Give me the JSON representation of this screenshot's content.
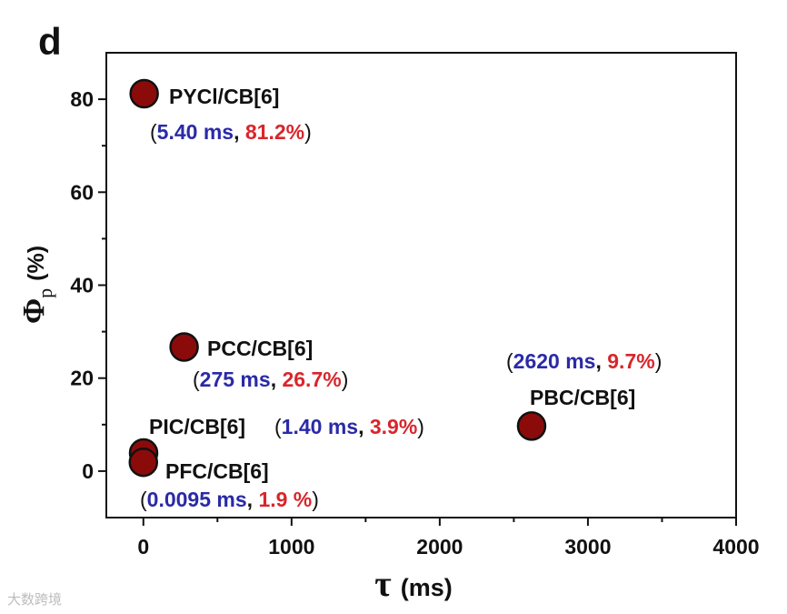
{
  "chart_data": {
    "type": "scatter",
    "panel_label": "d",
    "xlabel_symbol": "τ",
    "xlabel_unit": "(ms)",
    "ylabel_symbol": "Φ",
    "ylabel_sub": "p",
    "ylabel_unit": "(%)",
    "xlim": [
      -250,
      4000
    ],
    "ylim": [
      -10,
      90
    ],
    "xticks": [
      0,
      1000,
      2000,
      3000,
      4000
    ],
    "yticks": [
      0,
      20,
      40,
      60,
      80
    ],
    "marker_color": "#8b0b0b",
    "tau_color": "#2a2aa8",
    "phi_color": "#d8262c",
    "points": [
      {
        "name": "PYCl/CB[6]",
        "x": 5.4,
        "y": 81.2,
        "tau_text": "5.40 ms",
        "phi_text": "81.2%"
      },
      {
        "name": "PCC/CB[6]",
        "x": 275,
        "y": 26.7,
        "tau_text": "275 ms",
        "phi_text": "26.7%"
      },
      {
        "name": "PIC/CB[6]",
        "x": 1.4,
        "y": 3.9,
        "tau_text": "1.40 ms",
        "phi_text": "3.9%"
      },
      {
        "name": "PFC/CB[6]",
        "x": 0.0095,
        "y": 1.9,
        "tau_text": "0.0095 ms",
        "phi_text": "1.9 %"
      },
      {
        "name": "PBC/CB[6]",
        "x": 2620,
        "y": 9.7,
        "tau_text": "2620 ms",
        "phi_text": "9.7%"
      }
    ]
  },
  "watermark": "大数跨境"
}
